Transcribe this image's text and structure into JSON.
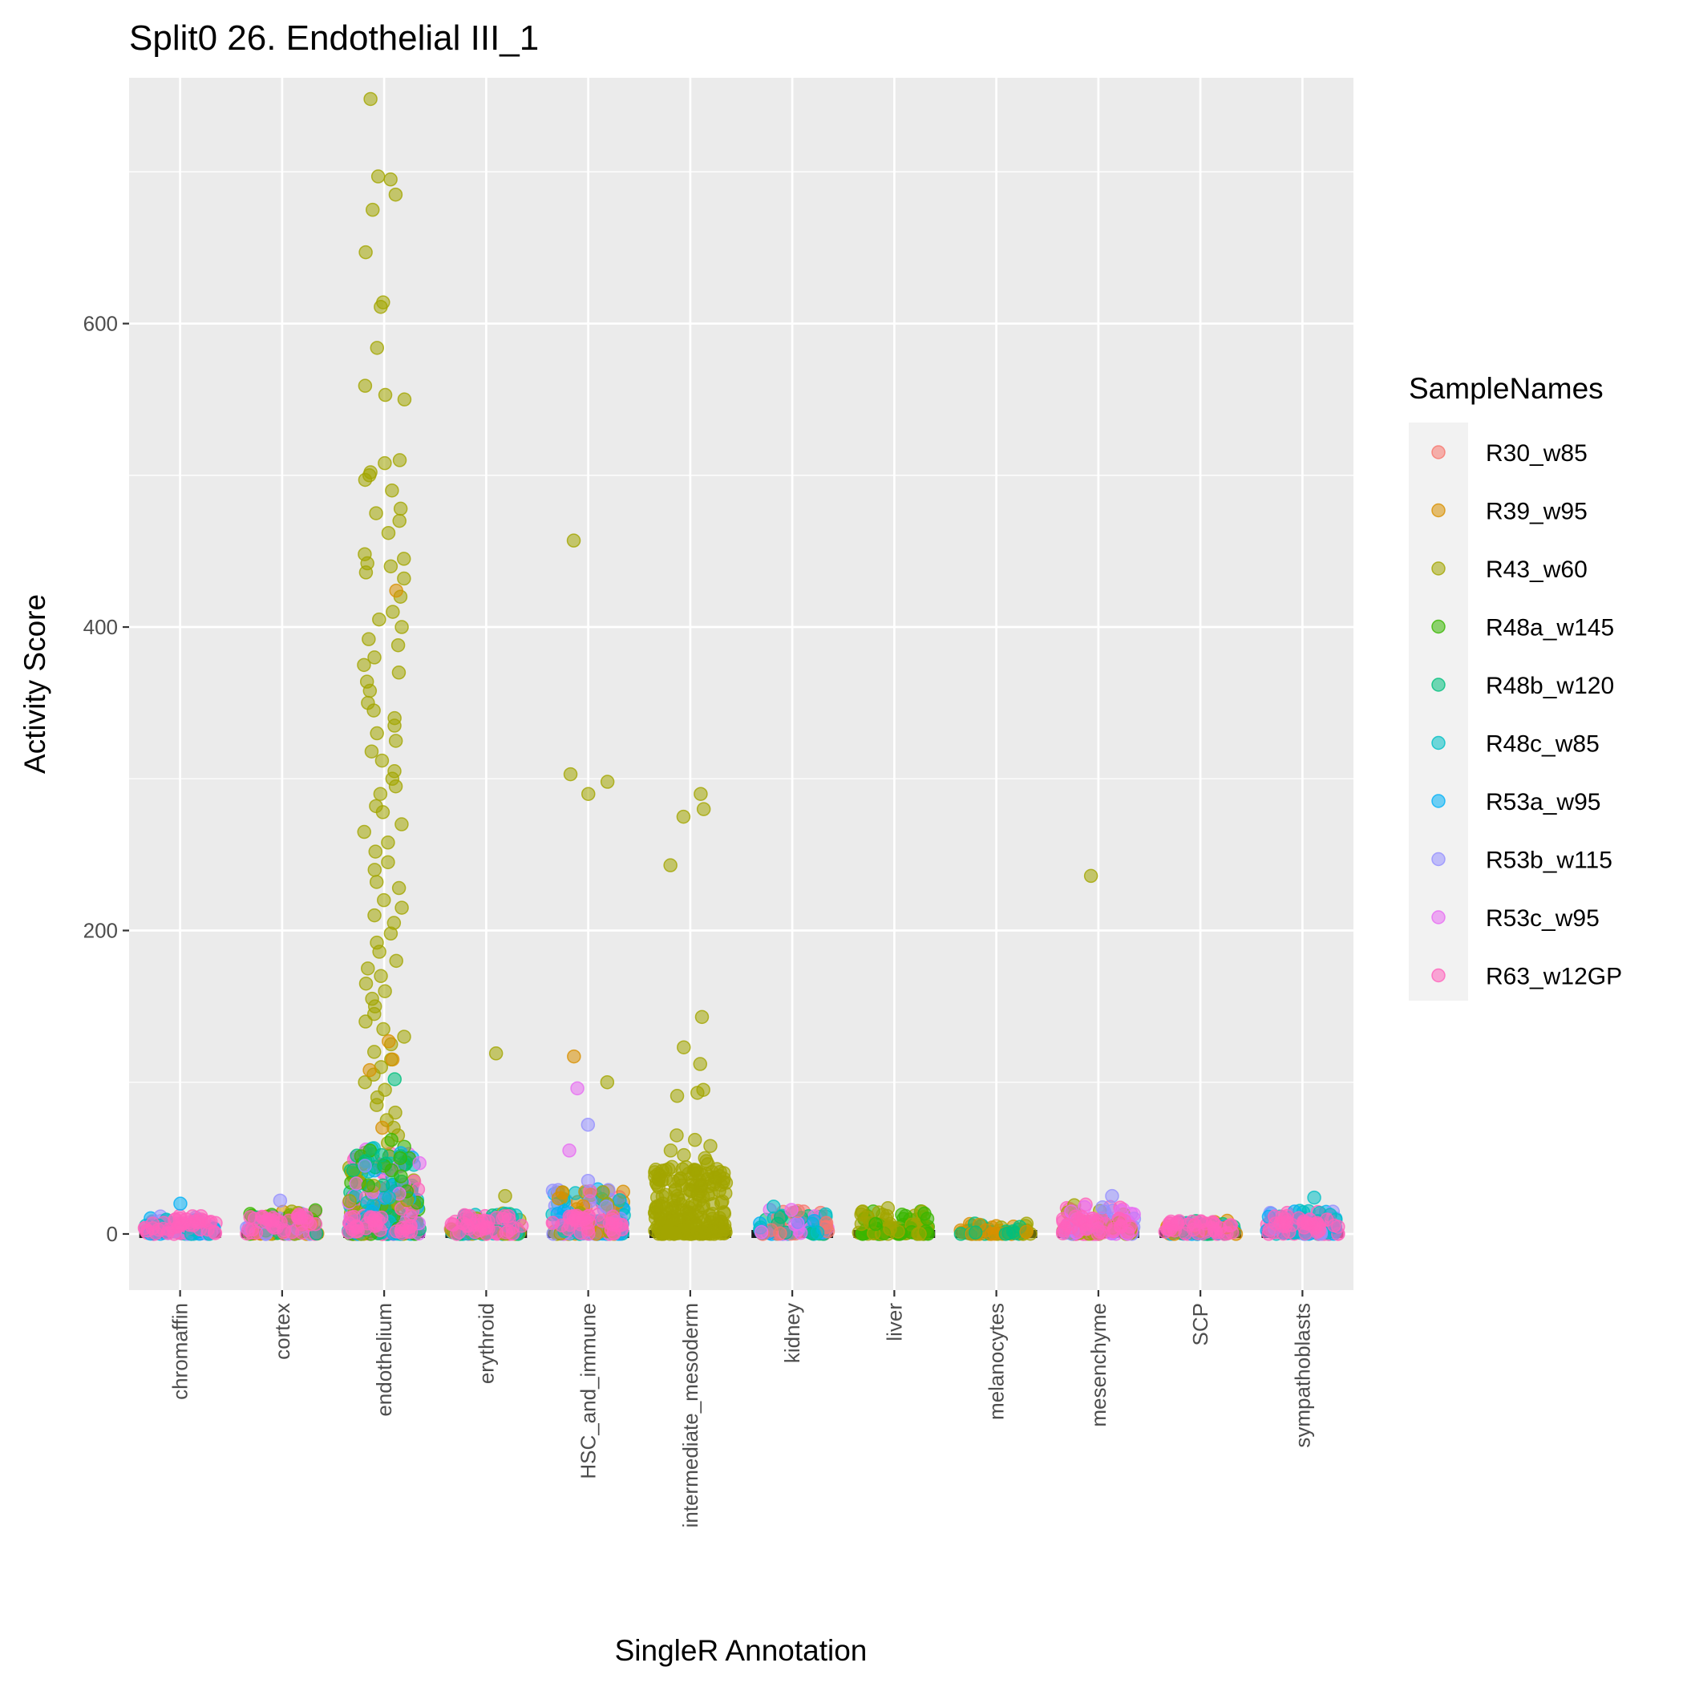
{
  "chart_data": {
    "type": "scatter",
    "title": "Split0 26. Endothelial III_1",
    "xlabel": "SingleR Annotation",
    "ylabel": "Activity Score",
    "ylim": [
      -37,
      762
    ],
    "yticks": [
      0,
      200,
      400,
      600
    ],
    "grid": true,
    "legend_position": "right",
    "legend_title": "SampleNames",
    "categories": [
      "chromaffin",
      "cortex",
      "endothelium",
      "erythroid",
      "HSC_and_immune",
      "intermediate_mesoderm",
      "kidney",
      "liver",
      "melanocytes",
      "mesenchyme",
      "SCP",
      "sympathoblasts"
    ],
    "series": [
      {
        "name": "R30_w85",
        "color": "#F8766D"
      },
      {
        "name": "R39_w95",
        "color": "#D89000"
      },
      {
        "name": "R43_w60",
        "color": "#A3A500"
      },
      {
        "name": "R48a_w145",
        "color": "#39B600"
      },
      {
        "name": "R48b_w120",
        "color": "#00BF7D"
      },
      {
        "name": "R48c_w85",
        "color": "#00BFC4"
      },
      {
        "name": "R53a_w95",
        "color": "#00B0F6"
      },
      {
        "name": "R53b_w115",
        "color": "#9590FF"
      },
      {
        "name": "R53c_w95",
        "color": "#E76BF3"
      },
      {
        "name": "R63_w12GP",
        "color": "#FF62BC"
      }
    ],
    "outliers": [
      {
        "category": "endothelium",
        "sample": "R43_w60",
        "values": [
          748,
          697,
          695,
          685,
          675,
          647,
          614,
          611,
          584,
          559,
          553,
          550,
          510,
          508,
          502,
          500,
          497,
          490,
          478,
          475,
          470,
          462,
          448,
          445,
          442,
          440,
          436,
          432,
          420,
          410,
          405,
          400,
          392,
          388,
          380,
          375,
          370,
          364,
          358,
          350,
          345,
          340,
          335,
          330,
          325,
          318,
          312,
          305,
          300,
          295,
          290,
          282,
          278,
          270,
          265,
          258,
          252,
          245,
          240,
          232,
          228,
          220,
          215,
          210,
          205,
          198,
          192,
          186,
          180,
          175,
          170,
          165,
          160,
          155,
          150,
          145,
          140,
          135,
          130,
          125,
          120,
          115,
          110,
          105,
          100,
          95,
          90,
          85,
          80,
          75,
          70,
          65,
          60
        ]
      },
      {
        "category": "endothelium",
        "sample": "R39_w95",
        "values": [
          424,
          127,
          115,
          108,
          70
        ]
      },
      {
        "category": "endothelium",
        "sample": "R48a_w145",
        "values": [
          62,
          55,
          50,
          45,
          42,
          38
        ]
      },
      {
        "category": "endothelium",
        "sample": "R48b_w120",
        "values": [
          102,
          52,
          48,
          44
        ]
      },
      {
        "category": "endothelium",
        "sample": "R53b_w115",
        "values": [
          45
        ]
      },
      {
        "category": "HSC_and_immune",
        "sample": "R43_w60",
        "values": [
          457,
          303,
          298,
          290,
          100
        ]
      },
      {
        "category": "HSC_and_immune",
        "sample": "R39_w95",
        "values": [
          117
        ]
      },
      {
        "category": "HSC_and_immune",
        "sample": "R53c_w95",
        "values": [
          96,
          55
        ]
      },
      {
        "category": "HSC_and_immune",
        "sample": "R53b_w115",
        "values": [
          72,
          35
        ]
      },
      {
        "category": "intermediate_mesoderm",
        "sample": "R43_w60",
        "values": [
          290,
          280,
          275,
          243,
          143,
          123,
          112,
          95,
          93,
          91,
          65,
          62,
          58,
          55,
          52,
          50,
          48,
          46,
          44,
          42,
          40
        ]
      },
      {
        "category": "erythroid",
        "sample": "R43_w60",
        "values": [
          119,
          25
        ]
      },
      {
        "category": "mesenchyme",
        "sample": "R43_w60",
        "values": [
          236
        ]
      },
      {
        "category": "mesenchyme",
        "sample": "R53b_w115",
        "values": [
          25
        ]
      },
      {
        "category": "chromaffin",
        "sample": "R53a_w95",
        "values": [
          20
        ]
      },
      {
        "category": "cortex",
        "sample": "R53b_w115",
        "values": [
          22
        ]
      },
      {
        "category": "sympathoblasts",
        "sample": "R48c_w85",
        "values": [
          24
        ]
      },
      {
        "category": "kidney",
        "sample": "R48c_w85",
        "values": [
          18
        ]
      },
      {
        "category": "liver",
        "sample": "R43_w60",
        "values": [
          17
        ]
      }
    ],
    "clusters": [
      {
        "category": "chromaffin",
        "max": 12,
        "samples": [
          "R53a_w95",
          "R53b_w115",
          "R48c_w85",
          "R63_w12GP"
        ]
      },
      {
        "category": "cortex",
        "max": 16,
        "samples": [
          "R39_w95",
          "R43_w60",
          "R48a_w145",
          "R48b_w120",
          "R53b_w115",
          "R63_w12GP"
        ]
      },
      {
        "category": "endothelium",
        "max": 58,
        "samples": [
          "R43_w60",
          "R48a_w145",
          "R48b_w120",
          "R48c_w85",
          "R53a_w95",
          "R53c_w95",
          "R63_w12GP"
        ]
      },
      {
        "category": "erythroid",
        "max": 14,
        "samples": [
          "R43_w60",
          "R48b_w120",
          "R48c_w85",
          "R63_w12GP"
        ]
      },
      {
        "category": "HSC_and_immune",
        "max": 30,
        "samples": [
          "R39_w95",
          "R43_w60",
          "R48c_w85",
          "R53a_w95",
          "R53b_w115",
          "R63_w12GP"
        ]
      },
      {
        "category": "intermediate_mesoderm",
        "max": 45,
        "samples": [
          "R43_w60"
        ]
      },
      {
        "category": "kidney",
        "max": 16,
        "samples": [
          "R30_w85",
          "R48b_w120",
          "R48c_w85",
          "R53a_w95",
          "R53c_w95"
        ]
      },
      {
        "category": "liver",
        "max": 15,
        "samples": [
          "R43_w60",
          "R48a_w145"
        ]
      },
      {
        "category": "melanocytes",
        "max": 7,
        "samples": [
          "R39_w95",
          "R43_w60",
          "R48b_w120"
        ]
      },
      {
        "category": "mesenchyme",
        "max": 20,
        "samples": [
          "R43_w60",
          "R53b_w115",
          "R53c_w95",
          "R63_w12GP"
        ]
      },
      {
        "category": "SCP",
        "max": 9,
        "samples": [
          "R39_w95",
          "R48b_w120",
          "R53a_w95",
          "R63_w12GP"
        ]
      },
      {
        "category": "sympathoblasts",
        "max": 16,
        "samples": [
          "R48c_w85",
          "R53a_w95",
          "R53b_w115",
          "R63_w12GP"
        ]
      }
    ]
  }
}
